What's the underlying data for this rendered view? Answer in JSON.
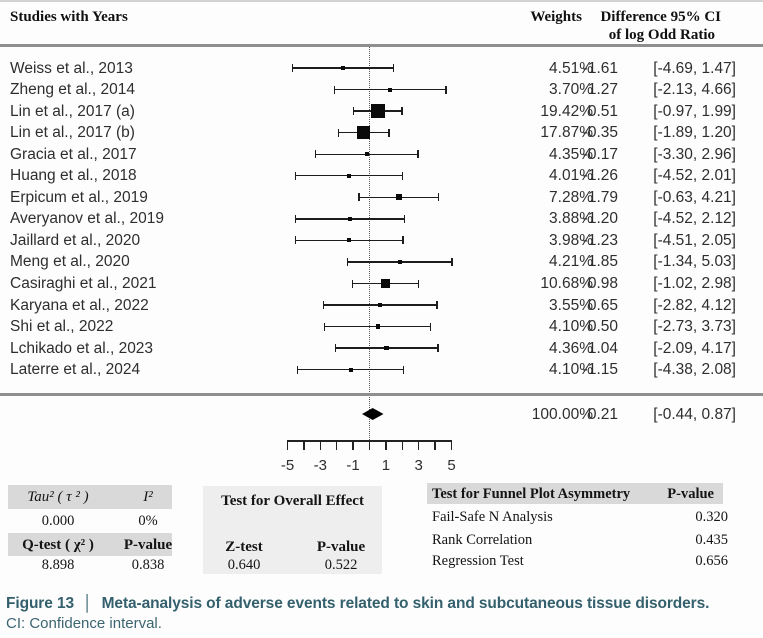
{
  "header": {
    "studies": "Studies with Years",
    "weights": "Weights",
    "diff_line1": "Difference 95% CI",
    "diff_line2": "of log Odd Ratio"
  },
  "chart_data": {
    "type": "scatter",
    "subtype": "forest-plot",
    "title": "",
    "xlabel": "Difference of log Odd Ratio",
    "xlim": [
      -5.5,
      5.5
    ],
    "zero_reference": 0,
    "axis": {
      "min": -5,
      "max": 5,
      "step": 1,
      "labeled": [
        -5,
        -3,
        -1,
        1,
        3,
        5
      ]
    },
    "studies": [
      {
        "label": "Weiss et al., 2013",
        "weight_text": "4.51%",
        "w": 4.51,
        "est": -1.61,
        "lo": -4.69,
        "hi": 1.47,
        "est_text": "-1.61",
        "ci_text": "[-4.69, 1.47]"
      },
      {
        "label": "Zheng et al., 2014",
        "weight_text": "3.70%",
        "w": 3.7,
        "est": 1.27,
        "lo": -2.13,
        "hi": 4.66,
        "est_text": "1.27",
        "ci_text": "[-2.13, 4.66]"
      },
      {
        "label": "Lin et al., 2017 (a)",
        "weight_text": "19.42%",
        "w": 19.42,
        "est": 0.51,
        "lo": -0.97,
        "hi": 1.99,
        "est_text": "0.51",
        "ci_text": "[-0.97, 1.99]"
      },
      {
        "label": "Lin et al., 2017 (b)",
        "weight_text": "17.87%",
        "w": 17.87,
        "est": -0.35,
        "lo": -1.89,
        "hi": 1.2,
        "est_text": "-0.35",
        "ci_text": "[-1.89, 1.20]"
      },
      {
        "label": "Gracia et al., 2017",
        "weight_text": "4.35%",
        "w": 4.35,
        "est": -0.17,
        "lo": -3.3,
        "hi": 2.96,
        "est_text": "-0.17",
        "ci_text": "[-3.30, 2.96]"
      },
      {
        "label": "Huang et al., 2018",
        "weight_text": "4.01%",
        "w": 4.01,
        "est": -1.26,
        "lo": -4.52,
        "hi": 2.01,
        "est_text": "-1.26",
        "ci_text": "[-4.52, 2.01]"
      },
      {
        "label": "Erpicum et al., 2019",
        "weight_text": "7.28%",
        "w": 7.28,
        "est": 1.79,
        "lo": -0.63,
        "hi": 4.21,
        "est_text": "1.79",
        "ci_text": "[-0.63, 4.21]"
      },
      {
        "label": "Averyanov et al., 2019",
        "weight_text": "3.88%",
        "w": 3.88,
        "est": -1.2,
        "lo": -4.52,
        "hi": 2.12,
        "est_text": "-1.20",
        "ci_text": "[-4.52, 2.12]"
      },
      {
        "label": "Jaillard et al., 2020",
        "weight_text": "3.98%",
        "w": 3.98,
        "est": -1.23,
        "lo": -4.51,
        "hi": 2.05,
        "est_text": "-1.23",
        "ci_text": "[-4.51, 2.05]"
      },
      {
        "label": "Meng et al., 2020",
        "weight_text": "4.21%",
        "w": 4.21,
        "est": 1.85,
        "lo": -1.34,
        "hi": 5.03,
        "est_text": "1.85",
        "ci_text": "[-1.34, 5.03]"
      },
      {
        "label": "Casiraghi et al., 2021",
        "weight_text": "10.68%",
        "w": 10.68,
        "est": 0.98,
        "lo": -1.02,
        "hi": 2.98,
        "est_text": "0.98",
        "ci_text": "[-1.02, 2.98]"
      },
      {
        "label": "Karyana et al., 2022",
        "weight_text": "3.55%",
        "w": 3.55,
        "est": 0.65,
        "lo": -2.82,
        "hi": 4.12,
        "est_text": "0.65",
        "ci_text": "[-2.82, 4.12]"
      },
      {
        "label": "Shi et al., 2022",
        "weight_text": "4.10%",
        "w": 4.1,
        "est": 0.5,
        "lo": -2.73,
        "hi": 3.73,
        "est_text": "0.50",
        "ci_text": "[-2.73, 3.73]"
      },
      {
        "label": "Lchikado et al., 2023",
        "weight_text": "4.36%",
        "w": 4.36,
        "est": 1.04,
        "lo": -2.09,
        "hi": 4.17,
        "est_text": "1.04",
        "ci_text": "[-2.09, 4.17]"
      },
      {
        "label": "Laterre et al., 2024",
        "weight_text": "4.10%",
        "w": 4.1,
        "est": -1.15,
        "lo": -4.38,
        "hi": 2.08,
        "est_text": "-1.15",
        "ci_text": "[-4.38, 2.08]"
      }
    ],
    "overall": {
      "weight_text": "100.00%",
      "w": 100.0,
      "est": 0.21,
      "lo": -0.44,
      "hi": 0.87,
      "est_text": "0.21",
      "ci_text": "[-0.44, 0.87]"
    }
  },
  "tables": {
    "het": {
      "tau_label": "Tau² ( τ ² )",
      "i2_label": "I²",
      "tau_value": "0.000",
      "i2_value": "0%",
      "q_label": "Q-test ( χ² )",
      "p_label": "P-value",
      "q_value": "8.898",
      "p_value": "0.838"
    },
    "effect": {
      "title": "Test for Overall Effect",
      "z_label": "Z-test",
      "p_label": "P-value",
      "z_value": "0.640",
      "p_value": "0.522"
    },
    "funnel": {
      "title": "Test for Funnel Plot Asymmetry",
      "p_label": "P-value",
      "rows": [
        {
          "label": "Fail-Safe N Analysis",
          "value": "0.320"
        },
        {
          "label": "Rank Correlation",
          "value": "0.435"
        },
        {
          "label": "Regression Test",
          "value": "0.656"
        }
      ]
    }
  },
  "caption": {
    "figure_label": "Figure 13",
    "separator": "│",
    "text": "Meta-analysis of adverse events related to skin and subcutaneous tissue disorders.",
    "note": "CI: Confidence interval."
  }
}
